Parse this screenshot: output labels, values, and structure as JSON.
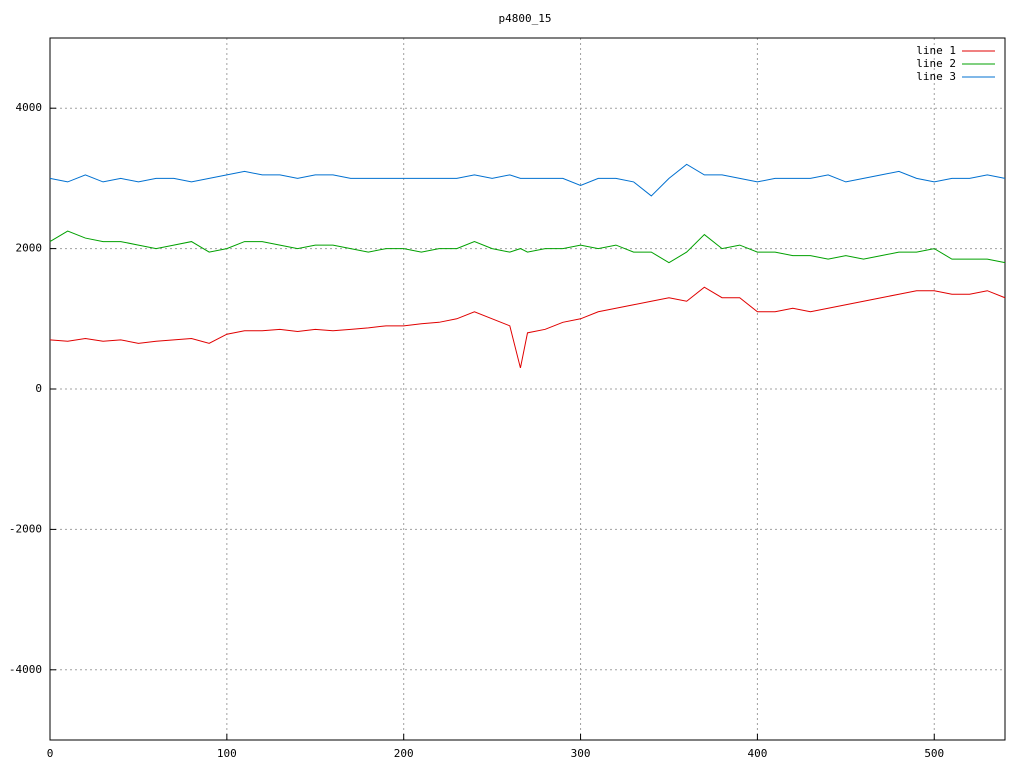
{
  "chart_data": {
    "type": "line",
    "title": "p4800_15",
    "x": [
      0,
      10,
      20,
      30,
      40,
      50,
      60,
      70,
      80,
      90,
      100,
      110,
      120,
      130,
      140,
      150,
      160,
      170,
      180,
      190,
      200,
      210,
      220,
      230,
      240,
      250,
      260,
      266,
      270,
      280,
      290,
      300,
      310,
      320,
      330,
      340,
      350,
      360,
      370,
      380,
      390,
      400,
      410,
      420,
      430,
      440,
      450,
      460,
      470,
      480,
      490,
      500,
      510,
      520,
      530,
      540
    ],
    "series": [
      {
        "name": "line 1",
        "color": "#e00000",
        "values": [
          700,
          680,
          720,
          680,
          700,
          650,
          680,
          700,
          720,
          650,
          780,
          830,
          830,
          850,
          820,
          850,
          830,
          850,
          870,
          900,
          900,
          930,
          950,
          1000,
          1100,
          1000,
          900,
          300,
          800,
          850,
          950,
          1000,
          1100,
          1150,
          1200,
          1250,
          1300,
          1250,
          1450,
          1300,
          1300,
          1100,
          1100,
          1150,
          1100,
          1150,
          1200,
          1250,
          1300,
          1350,
          1400,
          1400,
          1350,
          1350,
          1400,
          1300
        ]
      },
      {
        "name": "line 2",
        "color": "#00a000",
        "values": [
          2100,
          2250,
          2150,
          2100,
          2100,
          2050,
          2000,
          2050,
          2100,
          1950,
          2000,
          2100,
          2100,
          2050,
          2000,
          2050,
          2050,
          2000,
          1950,
          2000,
          2000,
          1950,
          2000,
          2000,
          2100,
          2000,
          1950,
          2000,
          1950,
          2000,
          2000,
          2050,
          2000,
          2050,
          1950,
          1950,
          1800,
          1950,
          2200,
          2000,
          2050,
          1950,
          1950,
          1900,
          1900,
          1850,
          1900,
          1850,
          1900,
          1950,
          1950,
          2000,
          1850,
          1850,
          1850,
          1800
        ]
      },
      {
        "name": "line 3",
        "color": "#0070d0",
        "values": [
          3000,
          2950,
          3050,
          2950,
          3000,
          2950,
          3000,
          3000,
          2950,
          3000,
          3050,
          3100,
          3050,
          3050,
          3000,
          3050,
          3050,
          3000,
          3000,
          3000,
          3000,
          3000,
          3000,
          3000,
          3050,
          3000,
          3050,
          3000,
          3000,
          3000,
          3000,
          2900,
          3000,
          3000,
          2950,
          2750,
          3000,
          3200,
          3050,
          3050,
          3000,
          2950,
          3000,
          3000,
          3000,
          3050,
          2950,
          3000,
          3050,
          3100,
          3000,
          2950,
          3000,
          3000,
          3050,
          3000
        ]
      }
    ],
    "xlim": [
      0,
      540
    ],
    "xticks": [
      0,
      100,
      200,
      300,
      400,
      500
    ],
    "ylim": [
      -5000,
      5000
    ],
    "yticks": [
      -4000,
      -2000,
      0,
      2000,
      4000
    ],
    "grid": true,
    "legend": "top-right"
  }
}
